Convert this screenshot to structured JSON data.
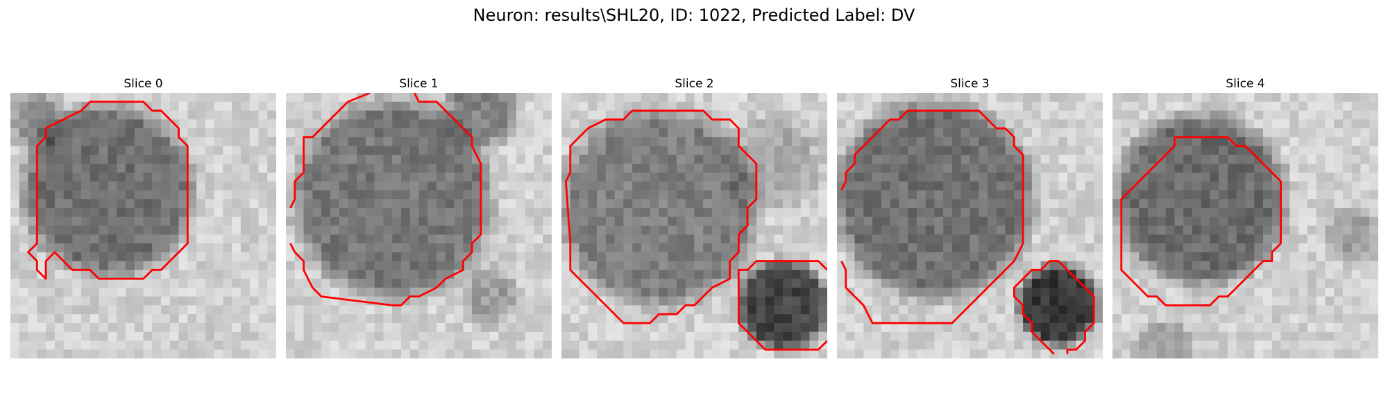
{
  "figure": {
    "title": "Neuron: results\\SHL20, ID: 1022, Predicted Label: DV"
  },
  "panels": [
    {
      "title": "Slice 0"
    },
    {
      "title": "Slice 1"
    },
    {
      "title": "Slice 2"
    },
    {
      "title": "Slice 3"
    },
    {
      "title": "Slice 4"
    }
  ],
  "colors": {
    "contour": "#ff0000"
  }
}
